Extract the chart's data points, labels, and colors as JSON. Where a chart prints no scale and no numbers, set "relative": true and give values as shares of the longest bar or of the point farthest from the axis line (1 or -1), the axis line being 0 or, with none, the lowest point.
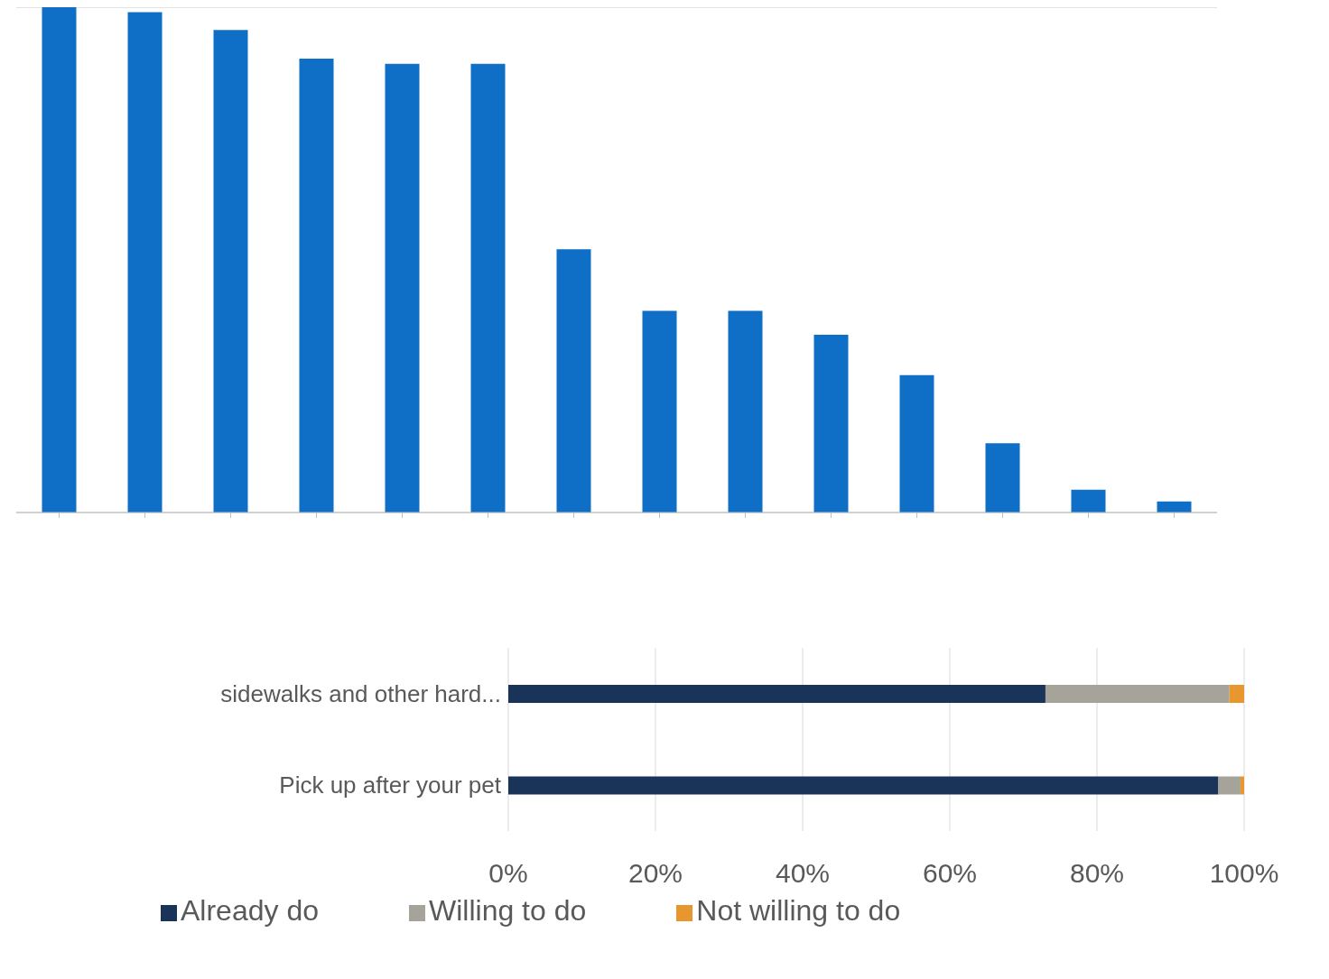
{
  "chart_data": [
    {
      "type": "bar",
      "relative": true,
      "categories": [
        null,
        null,
        null,
        null,
        null,
        null,
        null,
        null,
        null,
        null,
        null,
        null,
        null,
        null
      ],
      "color": "#0f6fc6",
      "values": [
        1,
        0.99,
        0.955,
        0.898,
        0.888,
        0.888,
        0.521,
        0.399,
        0.399,
        0.352,
        0.272,
        0.137,
        0.045,
        0.022
      ],
      "grid": "y",
      "tick_labels": false,
      "legend": false
    },
    {
      "type": "bar",
      "orientation": "horizontal",
      "stacked": true,
      "categories": [
        "sidewalks and other hard...",
        "Pick up after your pet"
      ],
      "xlim": [
        0,
        100
      ],
      "xticks": [
        {
          "value": 0,
          "label": "0%"
        },
        {
          "value": 20,
          "label": "20%"
        },
        {
          "value": 40,
          "label": "40%"
        },
        {
          "value": 60,
          "label": "60%"
        },
        {
          "value": 80,
          "label": "80%"
        },
        {
          "value": 100,
          "label": "100%"
        }
      ],
      "grid": "x",
      "legend": "bottom",
      "series": [
        {
          "name": "Already do",
          "color": "#1a3358",
          "values": [
            73,
            96.5
          ]
        },
        {
          "name": "Willing to do",
          "color": "#a6a39a",
          "values": [
            25,
            3
          ]
        },
        {
          "name": "Not willing to do",
          "color": "#e8962e",
          "values": [
            2,
            0.5
          ]
        }
      ]
    }
  ]
}
